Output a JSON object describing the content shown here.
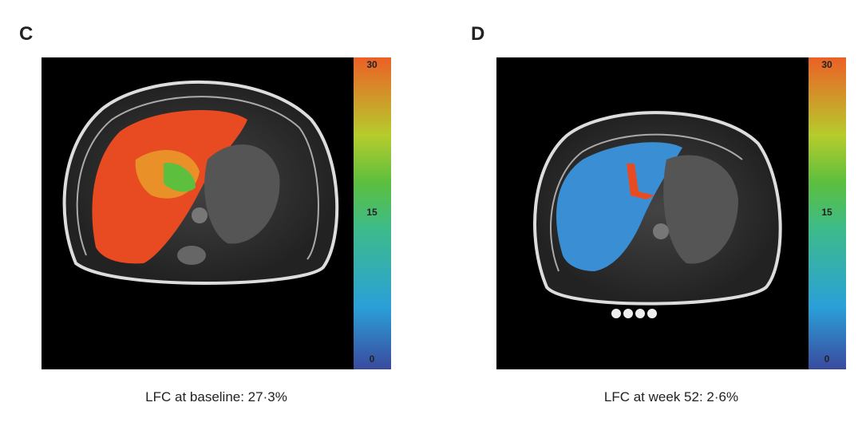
{
  "panels": [
    {
      "label": "C",
      "caption": "LFC at baseline: 27·3%",
      "colorbar_ticks": [
        "30",
        "15",
        "0"
      ]
    },
    {
      "label": "D",
      "caption": "LFC at week 52: 2·6%",
      "colorbar_ticks": [
        "30",
        "15",
        "0"
      ]
    }
  ]
}
